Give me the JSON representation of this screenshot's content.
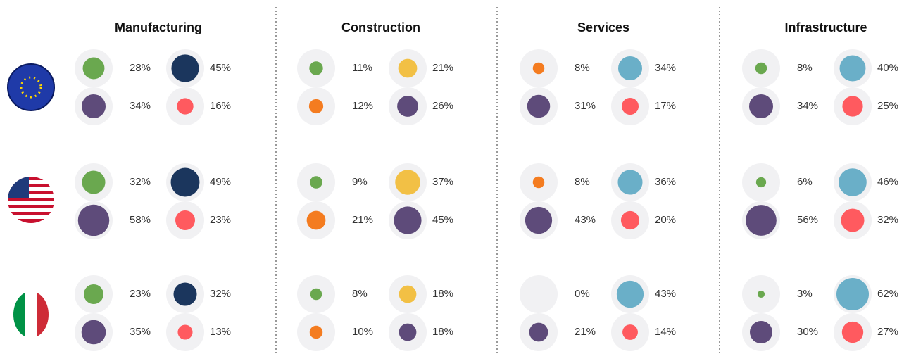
{
  "chart_data": {
    "type": "bubble-grid",
    "panels": [
      {
        "title": "Manufacturing",
        "colors": [
          "#6aa84f",
          "#1b365d",
          "#5e4b7a",
          "#ff5a5f"
        ],
        "values": [
          [
            28,
            45,
            34,
            16
          ],
          [
            32,
            49,
            58,
            23
          ],
          [
            23,
            32,
            35,
            13
          ]
        ],
        "value_labels": [
          [
            "28%",
            "45%",
            "34%",
            "16%"
          ],
          [
            "32%",
            "49%",
            "58%",
            "23%"
          ],
          [
            "23%",
            "32%",
            "35%",
            "13%"
          ]
        ]
      },
      {
        "title": "Construction",
        "colors": [
          "#6aa84f",
          "#f2c045",
          "#f47c20",
          "#5e4b7a"
        ],
        "values": [
          [
            11,
            21,
            12,
            26
          ],
          [
            9,
            37,
            21,
            45
          ],
          [
            8,
            18,
            10,
            18
          ]
        ],
        "value_labels": [
          [
            "11%",
            "21%",
            "12%",
            "26%"
          ],
          [
            "9%",
            "37%",
            "21%",
            "45%"
          ],
          [
            "8%",
            "18%",
            "10%",
            "18%"
          ]
        ]
      },
      {
        "title": "Services",
        "colors": [
          "#f47c20",
          "#6aafc8",
          "#5e4b7a",
          "#ff5a5f"
        ],
        "values": [
          [
            8,
            34,
            31,
            17
          ],
          [
            8,
            36,
            43,
            20
          ],
          [
            0,
            43,
            21,
            14
          ]
        ],
        "value_labels": [
          [
            "8%",
            "34%",
            "31%",
            "17%"
          ],
          [
            "8%",
            "36%",
            "43%",
            "20%"
          ],
          [
            "0%",
            "43%",
            "21%",
            "14%"
          ]
        ]
      },
      {
        "title": "Infrastructure",
        "colors": [
          "#6aa84f",
          "#6aafc8",
          "#5e4b7a",
          "#ff5a5f"
        ],
        "values": [
          [
            8,
            40,
            34,
            25
          ],
          [
            6,
            46,
            56,
            32
          ],
          [
            3,
            62,
            30,
            27
          ]
        ],
        "value_labels": [
          [
            "8%",
            "40%",
            "34%",
            "25%"
          ],
          [
            "6%",
            "46%",
            "56%",
            "32%"
          ],
          [
            "3%",
            "62%",
            "30%",
            "27%"
          ]
        ]
      }
    ]
  }
}
